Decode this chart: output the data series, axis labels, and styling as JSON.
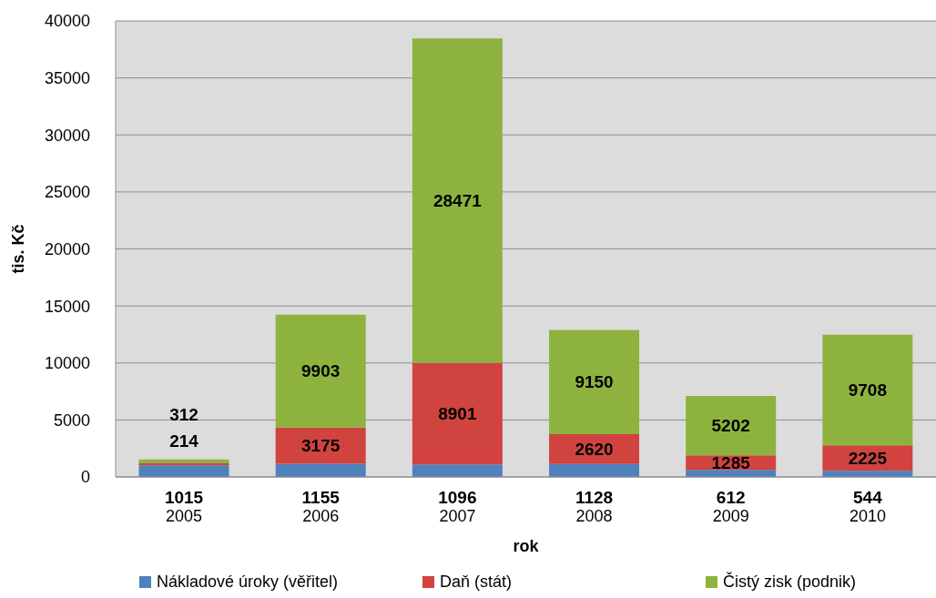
{
  "chart_data": {
    "type": "bar",
    "stacked": true,
    "xlabel": "rok",
    "ylabel": "tis. Kč",
    "categories": [
      "2005",
      "2006",
      "2007",
      "2008",
      "2009",
      "2010"
    ],
    "series": [
      {
        "name": "Nákladové úroky (věřitel)",
        "color": "#4f81bd",
        "values": [
          1015,
          1155,
          1096,
          1128,
          612,
          544
        ]
      },
      {
        "name": "Daň (stát)",
        "color": "#d0433f",
        "values": [
          214,
          3175,
          8901,
          2620,
          1285,
          2225
        ]
      },
      {
        "name": "Čistý zisk (podnik)",
        "color": "#8db33e",
        "values": [
          312,
          9903,
          28471,
          9150,
          5202,
          9708
        ]
      }
    ],
    "ylim": [
      0,
      40000
    ],
    "yticks": [
      0,
      5000,
      10000,
      15000,
      20000,
      25000,
      30000,
      35000,
      40000
    ],
    "grid": "y",
    "legend": "bottom",
    "data_labels": true
  }
}
